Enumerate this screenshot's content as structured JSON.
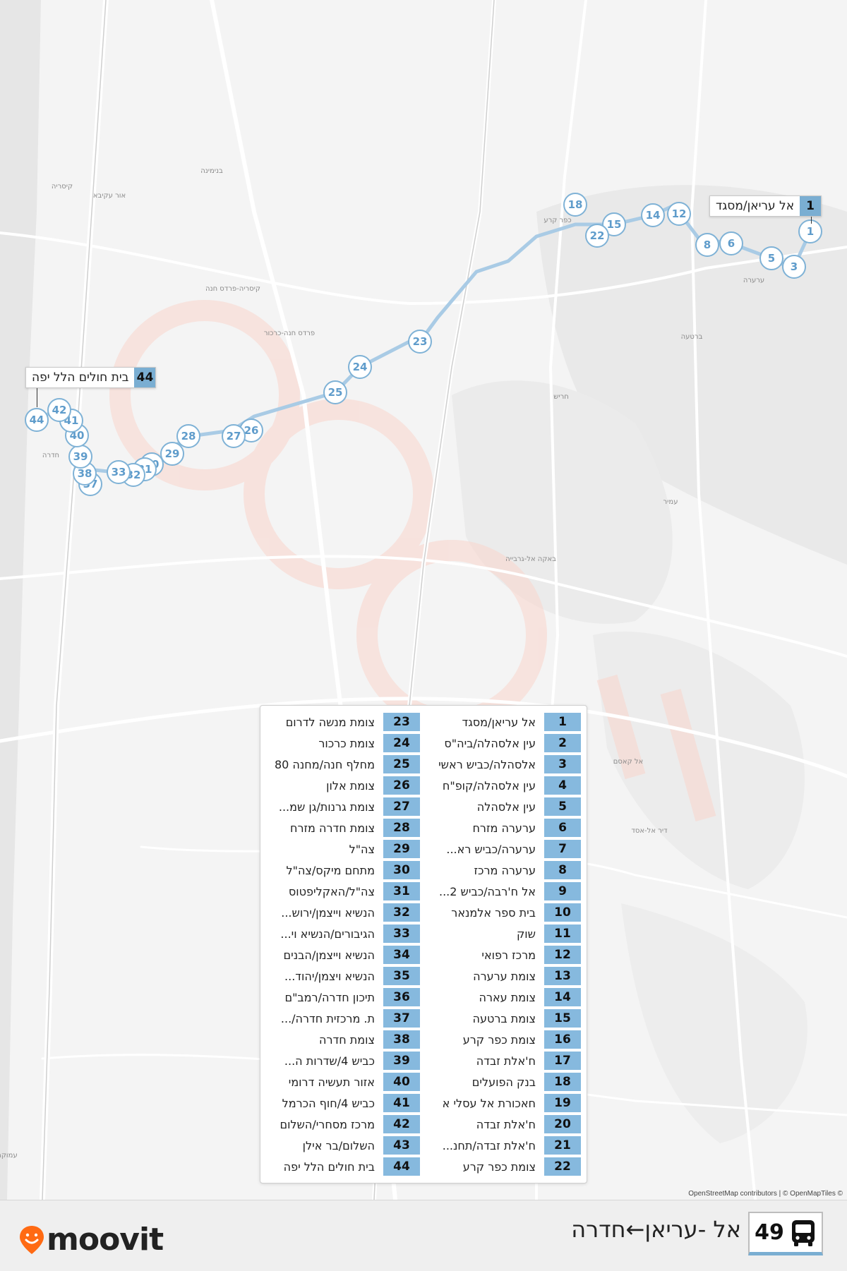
{
  "map": {
    "watermark_text": "moovit",
    "attribution": "OpenStreetMap contributors | © OpenMapTiles ©",
    "place_labels": [
      "קיסריה",
      "אור עקיבא",
      "בנימינה",
      "פרדס חנה-כרכור",
      "קיסריה-פרדס חנה",
      "חדרה",
      "כפר קרע",
      "ברטעה",
      "ערערה",
      "עמיר",
      "אל קאסם",
      "באקה אל-גרבייה",
      "חריש",
      "דיר אל-אסד",
      "עמוקה"
    ],
    "marker_labels": [
      "1",
      "3",
      "5",
      "6",
      "8",
      "12",
      "14",
      "15",
      "18",
      "22",
      "23",
      "24",
      "25",
      "26",
      "27",
      "28",
      "29",
      "30",
      "31",
      "32",
      "33",
      "37",
      "38",
      "39",
      "40",
      "41",
      "42",
      "44"
    ],
    "callouts": [
      {
        "num": "1",
        "name": "אל עריאן/מסגד"
      },
      {
        "num": "44",
        "name": "בית חולים הלל יפה"
      }
    ]
  },
  "stops": [
    {
      "num": "1",
      "name": "אל עריאן/מסגד"
    },
    {
      "num": "2",
      "name": "עין אלסהלה/ביה\"ס"
    },
    {
      "num": "3",
      "name": "אלסהלה/כביש ראשי"
    },
    {
      "num": "4",
      "name": "עין אלסהלה/קופ\"ח"
    },
    {
      "num": "5",
      "name": "עין אלסהלה"
    },
    {
      "num": "6",
      "name": "ערערה מזרח"
    },
    {
      "num": "7",
      "name": "ערערה/כביש רא..."
    },
    {
      "num": "8",
      "name": "ערערה מרכז"
    },
    {
      "num": "9",
      "name": "אל ח'רבה/כביש 2..."
    },
    {
      "num": "10",
      "name": "בית ספר אלמנאר"
    },
    {
      "num": "11",
      "name": "שוק"
    },
    {
      "num": "12",
      "name": "מרכז רפואי"
    },
    {
      "num": "13",
      "name": "צומת ערערה"
    },
    {
      "num": "14",
      "name": "צומת עארה"
    },
    {
      "num": "15",
      "name": "צומת ברטעה"
    },
    {
      "num": "16",
      "name": "צומת כפר קרע"
    },
    {
      "num": "17",
      "name": "ח'אלת זבדה"
    },
    {
      "num": "18",
      "name": "בנק הפועלים"
    },
    {
      "num": "19",
      "name": "חאכורת אל עסלי א"
    },
    {
      "num": "20",
      "name": "ח'אלת זבדה"
    },
    {
      "num": "21",
      "name": "ח'אלת זבדה/תחנ..."
    },
    {
      "num": "22",
      "name": "צומת כפר קרע"
    },
    {
      "num": "23",
      "name": "צומת מנשה לדרום"
    },
    {
      "num": "24",
      "name": "צומת כרכור"
    },
    {
      "num": "25",
      "name": "מחלף חנה/מחנה 80"
    },
    {
      "num": "26",
      "name": "צומת אלון"
    },
    {
      "num": "27",
      "name": "צומת גרנות/גן שמ..."
    },
    {
      "num": "28",
      "name": "צומת חדרה מזרח"
    },
    {
      "num": "29",
      "name": "צה\"ל"
    },
    {
      "num": "30",
      "name": "מתחם מיקס/צה\"ל"
    },
    {
      "num": "31",
      "name": "צה\"ל/האקליפטוס"
    },
    {
      "num": "32",
      "name": "הנשיא וייצמן/ירוש..."
    },
    {
      "num": "33",
      "name": "הגיבורים/הנשיא וי..."
    },
    {
      "num": "34",
      "name": "הנשיא וייצמן/הבנים"
    },
    {
      "num": "35",
      "name": "הנשיא ויצמן/יהוד..."
    },
    {
      "num": "36",
      "name": "תיכון חדרה/רמב\"ם"
    },
    {
      "num": "37",
      "name": "ת. מרכזית חדרה/..."
    },
    {
      "num": "38",
      "name": "צומת חדרה"
    },
    {
      "num": "39",
      "name": "כביש 4/שדרות ה..."
    },
    {
      "num": "40",
      "name": "אזור תעשיה דרומי"
    },
    {
      "num": "41",
      "name": "כביש 4/חוף הכרמל"
    },
    {
      "num": "42",
      "name": "מרכז מסחרי/השלום"
    },
    {
      "num": "43",
      "name": "השלום/בר אילן"
    },
    {
      "num": "44",
      "name": "בית חולים הלל יפה"
    }
  ],
  "footer": {
    "logo_text": "moovit",
    "route_number": "49",
    "route_title": "אל -עריאן←חדרה",
    "bus_icon": "bus-icon"
  },
  "colors": {
    "stop": "#86b9de",
    "stop_dark": "#5f9ccb",
    "brand": "#ff6a13",
    "watermark": "#f9d7cf"
  }
}
